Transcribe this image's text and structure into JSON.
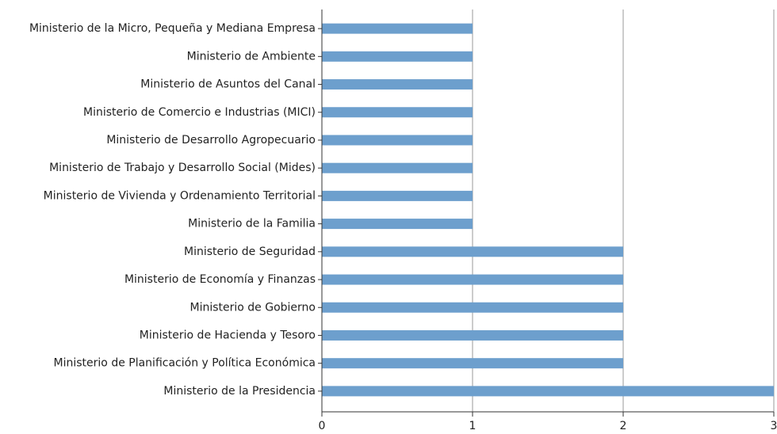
{
  "chart_data": {
    "type": "bar",
    "orientation": "horizontal",
    "categories": [
      "Ministerio de la Micro, Pequeña y Mediana Empresa",
      "Ministerio de Ambiente",
      "Ministerio de Asuntos del Canal",
      "Ministerio de Comercio e Industrias (MICI)",
      "Ministerio de Desarrollo Agropecuario",
      "Ministerio de Trabajo y Desarrollo Social (Mides)",
      "Ministerio de Vivienda y Ordenamiento Territorial",
      "Ministerio de la Familia",
      "Ministerio de Seguridad",
      "Ministerio de Economía y Finanzas",
      "Ministerio de Gobierno",
      "Ministerio de Hacienda y Tesoro",
      "Ministerio de Planificación y Política Económica",
      "Ministerio de la Presidencia"
    ],
    "values": [
      1,
      1,
      1,
      1,
      1,
      1,
      1,
      1,
      2,
      2,
      2,
      2,
      2,
      3
    ],
    "color": "#6d9fcd",
    "xlim": [
      0,
      3
    ],
    "xticks": [
      0,
      1,
      2,
      3
    ],
    "grid": true
  }
}
